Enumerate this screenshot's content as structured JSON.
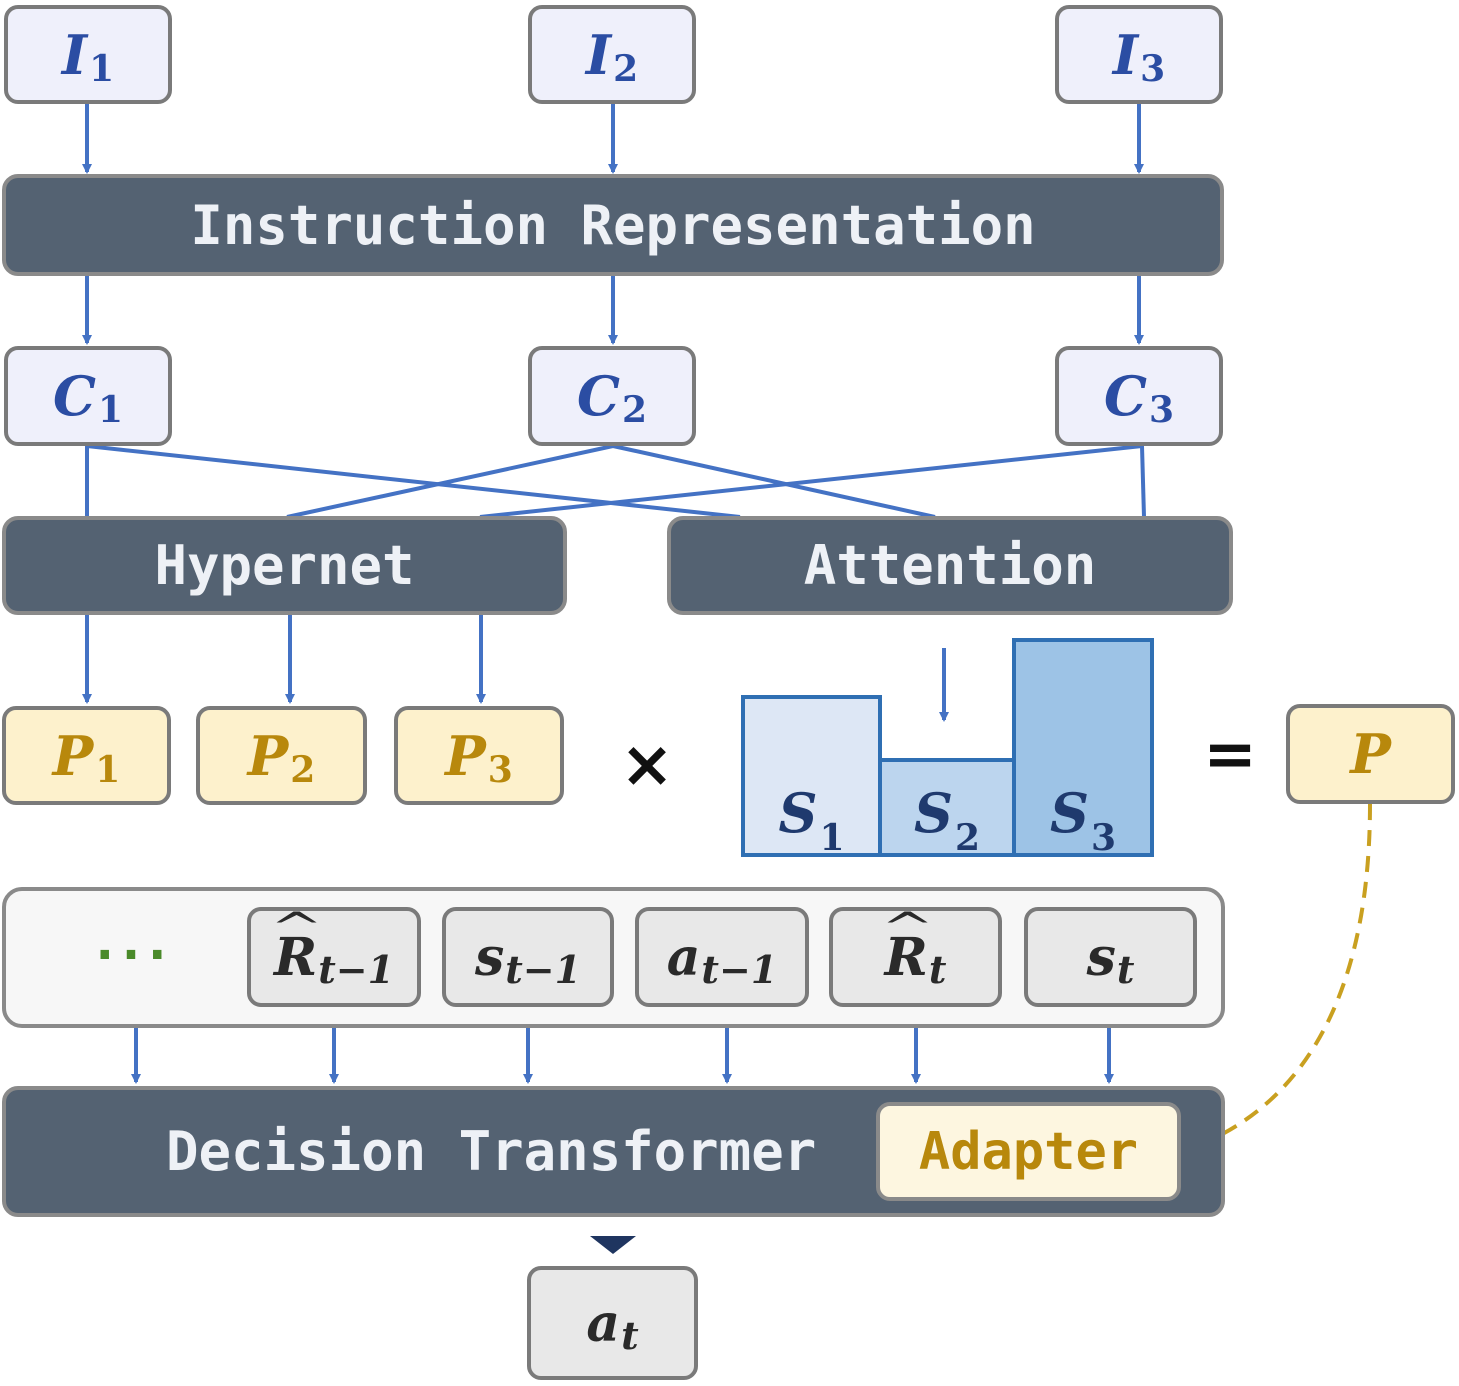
{
  "colors": {
    "arrow": "#4472c4",
    "dark_bar": "#546272",
    "output_arrow": "#1f3560",
    "dashed_arrow": "#c9a020",
    "score_fills": [
      "#dde7f5",
      "#bcd5ee",
      "#9dc3e6"
    ]
  },
  "instructions": [
    {
      "sym": "I",
      "sub": "1"
    },
    {
      "sym": "I",
      "sub": "2"
    },
    {
      "sym": "I",
      "sub": "3"
    }
  ],
  "instruction_representation": "Instruction Representation",
  "contexts": [
    {
      "sym": "C",
      "sub": "1"
    },
    {
      "sym": "C",
      "sub": "2"
    },
    {
      "sym": "C",
      "sub": "3"
    }
  ],
  "hypernet": "Hypernet",
  "attention": "Attention",
  "params": [
    {
      "sym": "P",
      "sub": "1"
    },
    {
      "sym": "P",
      "sub": "2"
    },
    {
      "sym": "P",
      "sub": "3"
    }
  ],
  "times_symbol": "×",
  "scores": [
    {
      "sym": "S",
      "sub": "1",
      "relative_height": 0.74
    },
    {
      "sym": "S",
      "sub": "2",
      "relative_height": 0.45
    },
    {
      "sym": "S",
      "sub": "3",
      "relative_height": 1.0
    }
  ],
  "equals_symbol": "=",
  "merged_param": "P",
  "ellipsis": "···",
  "tokens": [
    {
      "sym": "R",
      "sub": "t−1",
      "hat": true
    },
    {
      "sym": "s",
      "sub": "t−1",
      "hat": false
    },
    {
      "sym": "a",
      "sub": "t−1",
      "hat": false
    },
    {
      "sym": "R",
      "sub": "t",
      "hat": true
    },
    {
      "sym": "s",
      "sub": "t",
      "hat": false
    }
  ],
  "decision_transformer": "Decision Transformer",
  "adapter": "Adapter",
  "output": {
    "sym": "a",
    "sub": "t"
  }
}
